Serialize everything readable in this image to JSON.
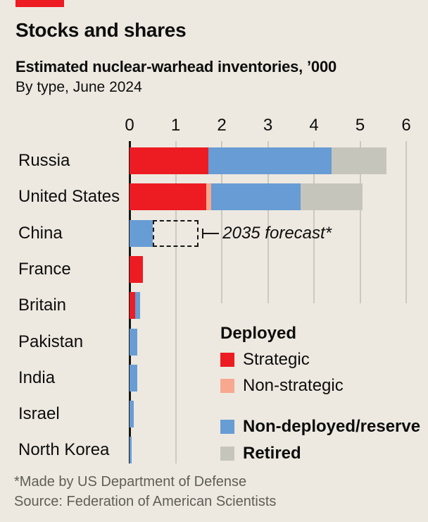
{
  "header": {
    "title": "Stocks and shares",
    "subtitle": "Estimated nuclear-warhead inventories, ’000",
    "sub2": "By type, June 2024"
  },
  "footer": {
    "note": "*Made by US Department of Defense",
    "source": "Source: Federation of American Scientists"
  },
  "colors": {
    "background": "#EDE9E0",
    "accent_red": "#ED1B22",
    "strategic": "#ED1B22",
    "non_strategic": "#F7A88F",
    "reserve": "#689CD4",
    "retired": "#C6C5BC",
    "grid": "#CBC9C1",
    "axis": "#151515",
    "text": "#0D0D0D",
    "muted": "#5E5E56"
  },
  "chart_data": {
    "type": "bar",
    "orientation": "horizontal",
    "stacked": true,
    "title": "Estimated nuclear-warhead inventories, ’000",
    "subtitle": "By type, June 2024",
    "unit": "thousands of warheads",
    "x_axis": {
      "min": 0,
      "max": 6,
      "ticks": [
        0,
        1,
        2,
        3,
        4,
        5,
        6
      ]
    },
    "grid": true,
    "categories": [
      "Russia",
      "United States",
      "China",
      "France",
      "Britain",
      "Pakistan",
      "India",
      "Israel",
      "North Korea"
    ],
    "series": [
      {
        "name": "Deployed, strategic",
        "color_key": "strategic",
        "values": [
          1.71,
          1.67,
          0,
          0.29,
          0.12,
          0,
          0,
          0,
          0
        ]
      },
      {
        "name": "Deployed, non-strategic",
        "color_key": "non_strategic",
        "values": [
          0,
          0.1,
          0,
          0,
          0,
          0,
          0,
          0,
          0
        ]
      },
      {
        "name": "Non-deployed/reserve",
        "color_key": "reserve",
        "values": [
          2.67,
          1.94,
          0.5,
          0,
          0.105,
          0.17,
          0.17,
          0.09,
          0.05
        ]
      },
      {
        "name": "Retired",
        "color_key": "retired",
        "values": [
          1.2,
          1.34,
          0,
          0,
          0,
          0,
          0,
          0,
          0
        ]
      }
    ],
    "annotation": {
      "country": "China",
      "label": "2035 forecast*",
      "from": 0.5,
      "to": 1.5,
      "style": "dashed-outline-box"
    },
    "legend_position": "inside-bottom-right"
  },
  "legend": {
    "group_title": "Deployed",
    "items": [
      {
        "label": "Strategic",
        "color_key": "strategic",
        "bold": false
      },
      {
        "label": "Non-strategic",
        "color_key": "non_strategic",
        "bold": false
      },
      {
        "label": "Non-deployed/reserve",
        "color_key": "reserve",
        "bold": true
      },
      {
        "label": "Retired",
        "color_key": "retired",
        "bold": true
      }
    ]
  }
}
